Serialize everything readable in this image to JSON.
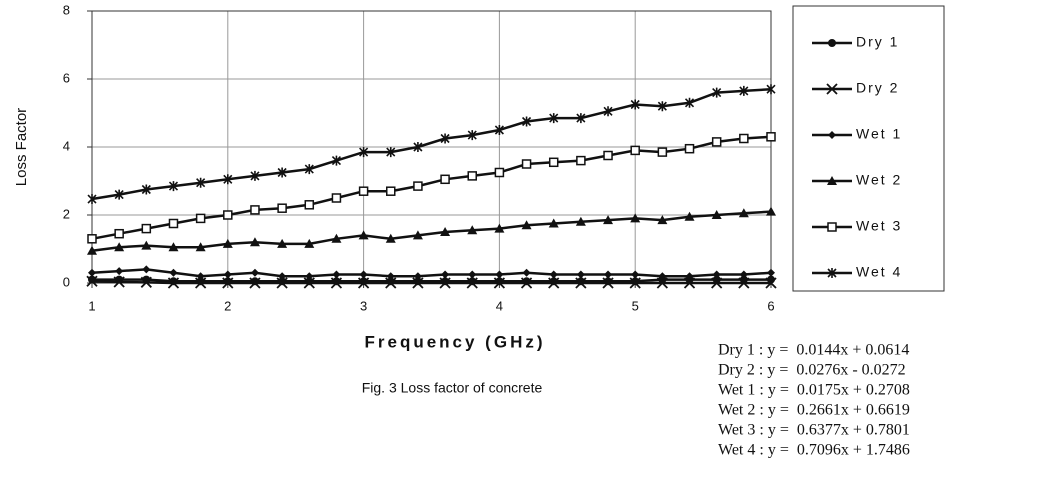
{
  "chart_data": {
    "type": "line",
    "caption": "Fig. 3 Loss factor of concrete",
    "x_label": "Frequency (GHz)",
    "y_label": "Loss Factor",
    "x": [
      1.0,
      1.2,
      1.4,
      1.6,
      1.8,
      2.0,
      2.2,
      2.4,
      2.6,
      2.8,
      3.0,
      3.2,
      3.4,
      3.6,
      3.8,
      4.0,
      4.2,
      4.4,
      4.6,
      4.8,
      5.0,
      5.2,
      5.4,
      5.6,
      5.8,
      6.0
    ],
    "xlim": [
      1,
      6
    ],
    "xticks": [
      1,
      2,
      3,
      4,
      5,
      6
    ],
    "ylim": [
      0,
      8
    ],
    "yticks": [
      0,
      2,
      4,
      6,
      8
    ],
    "grid": true,
    "legend": "right",
    "series": [
      {
        "name": "Dry 1",
        "color": "#111111",
        "marker": "circle",
        "values": [
          0.1,
          0.1,
          0.1,
          0.05,
          0.05,
          0.05,
          0.05,
          0.05,
          0.05,
          0.05,
          0.05,
          0.05,
          0.05,
          0.05,
          0.05,
          0.05,
          0.05,
          0.05,
          0.05,
          0.05,
          0.05,
          0.1,
          0.1,
          0.1,
          0.1,
          0.1
        ]
      },
      {
        "name": "Dry 2",
        "color": "#111111",
        "marker": "x",
        "values": [
          0.05,
          0.03,
          0.02,
          0.0,
          0.0,
          0.0,
          0.0,
          0.0,
          0.0,
          0.0,
          0.0,
          0.0,
          0.0,
          0.0,
          0.0,
          0.0,
          0.0,
          0.0,
          0.0,
          0.0,
          0.0,
          0.0,
          0.0,
          0.0,
          0.0,
          0.0
        ]
      },
      {
        "name": "Wet 1",
        "color": "#111111",
        "marker": "diamond",
        "values": [
          0.3,
          0.35,
          0.4,
          0.3,
          0.2,
          0.25,
          0.3,
          0.2,
          0.2,
          0.25,
          0.25,
          0.2,
          0.2,
          0.25,
          0.25,
          0.25,
          0.3,
          0.25,
          0.25,
          0.25,
          0.25,
          0.2,
          0.2,
          0.25,
          0.25,
          0.3
        ]
      },
      {
        "name": "Wet 2",
        "color": "#111111",
        "marker": "triangle",
        "values": [
          0.95,
          1.05,
          1.1,
          1.05,
          1.05,
          1.15,
          1.2,
          1.15,
          1.15,
          1.3,
          1.4,
          1.3,
          1.4,
          1.5,
          1.55,
          1.6,
          1.7,
          1.75,
          1.8,
          1.85,
          1.9,
          1.85,
          1.95,
          2.0,
          2.05,
          2.1
        ]
      },
      {
        "name": "Wet 3",
        "color": "#111111",
        "marker": "square",
        "values": [
          1.3,
          1.45,
          1.6,
          1.75,
          1.9,
          2.0,
          2.15,
          2.2,
          2.3,
          2.5,
          2.7,
          2.7,
          2.85,
          3.05,
          3.15,
          3.25,
          3.5,
          3.55,
          3.6,
          3.75,
          3.9,
          3.85,
          3.95,
          4.15,
          4.25,
          4.3
        ]
      },
      {
        "name": "Wet 4",
        "color": "#111111",
        "marker": "asterisk",
        "values": [
          2.47,
          2.6,
          2.75,
          2.85,
          2.95,
          3.05,
          3.15,
          3.25,
          3.35,
          3.6,
          3.85,
          3.85,
          4.0,
          4.25,
          4.35,
          4.5,
          4.75,
          4.85,
          4.85,
          5.05,
          5.25,
          5.2,
          5.3,
          5.6,
          5.65,
          5.7
        ]
      }
    ],
    "equations": [
      "Dry 1 : y =  0.0144x + 0.0614",
      "Dry 2 : y =  0.0276x - 0.0272",
      "Wet 1 : y =  0.0175x + 0.2708",
      "Wet 2 : y =  0.2661x + 0.6619",
      "Wet 3 : y =  0.6377x + 0.7801",
      "Wet 4 : y =  0.7096x + 1.7486"
    ]
  }
}
